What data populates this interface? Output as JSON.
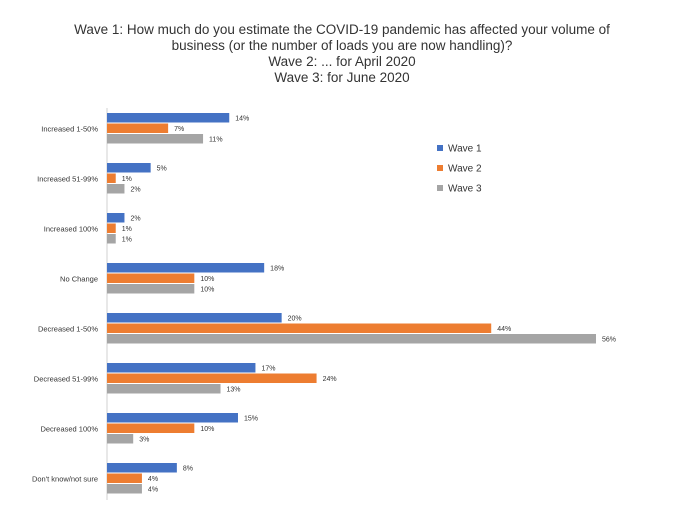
{
  "chart_data": {
    "type": "bar",
    "orientation": "horizontal",
    "title_lines": [
      "Wave 1: How much do you estimate the COVID-19 pandemic has affected your volume of",
      "business (or the number of loads you are now handling)?",
      "Wave 2: ...  for April 2020",
      "Wave 3: for June 2020"
    ],
    "categories": [
      "Increased 1-50%",
      "Increased 51-99%",
      "Increased 100%",
      "No Change",
      "Decreased 1-50%",
      "Decreased 51-99%",
      "Decreased 100%",
      "Don't know/not sure"
    ],
    "series": [
      {
        "name": "Wave 1",
        "color": "#4472C4",
        "values": [
          14,
          5,
          2,
          18,
          20,
          17,
          15,
          8
        ]
      },
      {
        "name": "Wave 2",
        "color": "#ED7D31",
        "values": [
          7,
          1,
          1,
          10,
          44,
          24,
          10,
          4
        ]
      },
      {
        "name": "Wave 3",
        "color": "#A5A5A5",
        "values": [
          11,
          2,
          1,
          10,
          56,
          13,
          3,
          4
        ]
      }
    ],
    "value_suffix": "%",
    "legend_position": "top-right",
    "xlim": [
      0,
      56
    ]
  }
}
